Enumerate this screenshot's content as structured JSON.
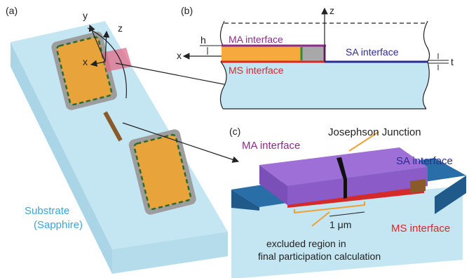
{
  "panel_a": {
    "label": "(a)",
    "axes": [
      "y",
      "z",
      "x"
    ],
    "substrate": [
      "Substrate",
      "(Sapphire)"
    ]
  },
  "panel_b": {
    "label": "(b)",
    "axes": [
      "z",
      "x"
    ],
    "dimensions": [
      "h",
      "t"
    ],
    "interfaces": [
      "MA interface",
      "SA interface",
      "MS interface"
    ]
  },
  "panel_c": {
    "label": "(c)",
    "interfaces": [
      "MA interface",
      "SA interface",
      "MS interface"
    ],
    "junction": "Josephson Junction",
    "scale": "1 μm",
    "note": [
      "excluded region in",
      "final participation calculation"
    ]
  }
}
